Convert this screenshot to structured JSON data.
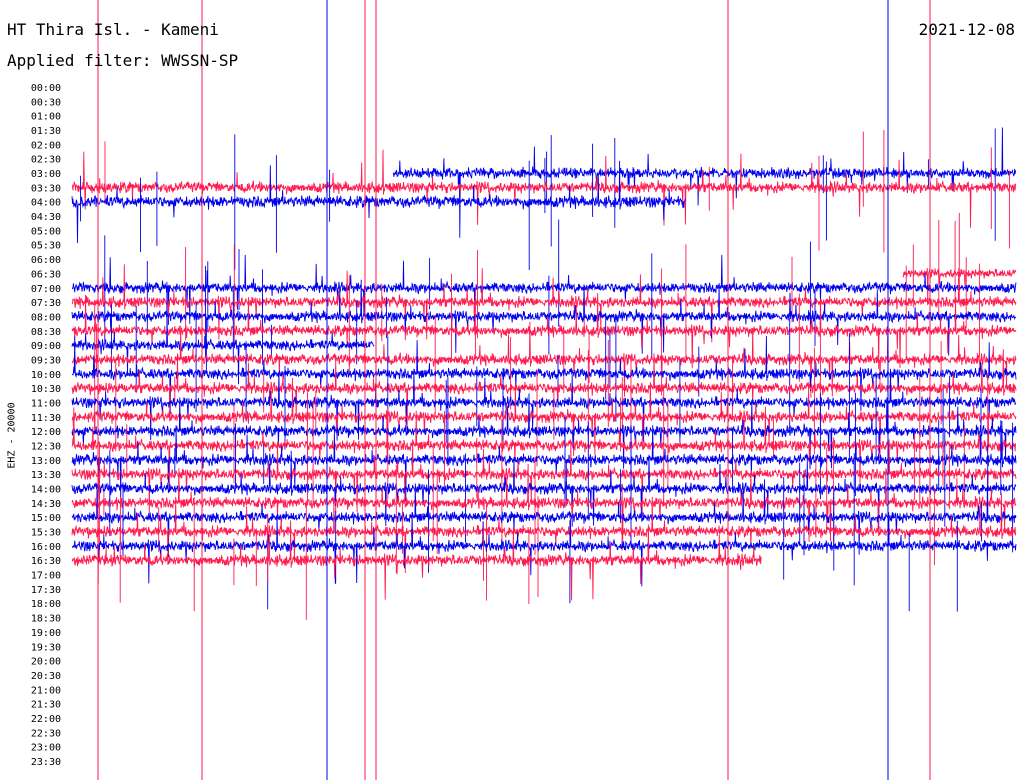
{
  "header": {
    "title": "HT Thira Isl. - Kameni",
    "date": "2021-12-08",
    "filter": "Applied filter: WWSSN-SP"
  },
  "chart_data": {
    "type": "line",
    "title": "HT Thira Isl. - Kameni",
    "subtitle": "Applied filter: WWSSN-SP",
    "ylabel": "EHZ - 20000",
    "xlabel": "",
    "row_labels": [
      "00:00",
      "00:30",
      "01:00",
      "01:30",
      "02:00",
      "02:30",
      "03:00",
      "03:30",
      "04:00",
      "04:30",
      "05:00",
      "05:30",
      "06:00",
      "06:30",
      "07:00",
      "07:30",
      "08:00",
      "08:30",
      "09:00",
      "09:30",
      "10:00",
      "10:30",
      "11:00",
      "11:30",
      "12:00",
      "12:30",
      "13:00",
      "13:30",
      "14:00",
      "14:30",
      "15:00",
      "15:30",
      "16:00",
      "16:30",
      "17:00",
      "17:30",
      "18:00",
      "18:30",
      "19:00",
      "19:30",
      "20:00",
      "20:30",
      "21:00",
      "21:30",
      "22:00",
      "22:30",
      "23:00",
      "23:30"
    ],
    "colors": {
      "even": "#0000ee",
      "odd": "#ff1a4f"
    },
    "traces": [
      {
        "row": "03:00",
        "coverage": [
          0.34,
          1.0
        ],
        "activity": 0.55
      },
      {
        "row": "03:30",
        "coverage": [
          0.0,
          1.0
        ],
        "activity": 0.6
      },
      {
        "row": "04:00",
        "coverage": [
          0.0,
          0.65
        ],
        "activity": 0.75
      },
      {
        "row": "06:30",
        "coverage": [
          0.88,
          1.0
        ],
        "activity": 0.3
      },
      {
        "row": "07:00",
        "coverage": [
          0.0,
          1.0
        ],
        "activity": 0.55
      },
      {
        "row": "07:30",
        "coverage": [
          0.0,
          1.0
        ],
        "activity": 0.6
      },
      {
        "row": "08:00",
        "coverage": [
          0.0,
          1.0
        ],
        "activity": 0.55
      },
      {
        "row": "08:30",
        "coverage": [
          0.0,
          1.0
        ],
        "activity": 0.6
      },
      {
        "row": "09:00",
        "coverage": [
          0.0,
          0.32
        ],
        "activity": 0.55
      },
      {
        "row": "09:30",
        "coverage": [
          0.0,
          1.0
        ],
        "activity": 0.6
      },
      {
        "row": "10:00",
        "coverage": [
          0.0,
          1.0
        ],
        "activity": 0.6
      },
      {
        "row": "10:30",
        "coverage": [
          0.0,
          1.0
        ],
        "activity": 0.65
      },
      {
        "row": "11:00",
        "coverage": [
          0.0,
          1.0
        ],
        "activity": 0.6
      },
      {
        "row": "11:30",
        "coverage": [
          0.0,
          1.0
        ],
        "activity": 0.65
      },
      {
        "row": "12:00",
        "coverage": [
          0.0,
          1.0
        ],
        "activity": 0.6
      },
      {
        "row": "12:30",
        "coverage": [
          0.0,
          1.0
        ],
        "activity": 0.65
      },
      {
        "row": "13:00",
        "coverage": [
          0.0,
          1.0
        ],
        "activity": 0.65
      },
      {
        "row": "13:30",
        "coverage": [
          0.0,
          1.0
        ],
        "activity": 0.65
      },
      {
        "row": "14:00",
        "coverage": [
          0.0,
          1.0
        ],
        "activity": 0.6
      },
      {
        "row": "14:30",
        "coverage": [
          0.0,
          1.0
        ],
        "activity": 0.65
      },
      {
        "row": "15:00",
        "coverage": [
          0.0,
          1.0
        ],
        "activity": 0.6
      },
      {
        "row": "15:30",
        "coverage": [
          0.0,
          1.0
        ],
        "activity": 0.65
      },
      {
        "row": "16:00",
        "coverage": [
          0.0,
          1.0
        ],
        "activity": 0.6
      },
      {
        "row": "16:30",
        "coverage": [
          0.0,
          0.73
        ],
        "activity": 0.7
      }
    ]
  }
}
